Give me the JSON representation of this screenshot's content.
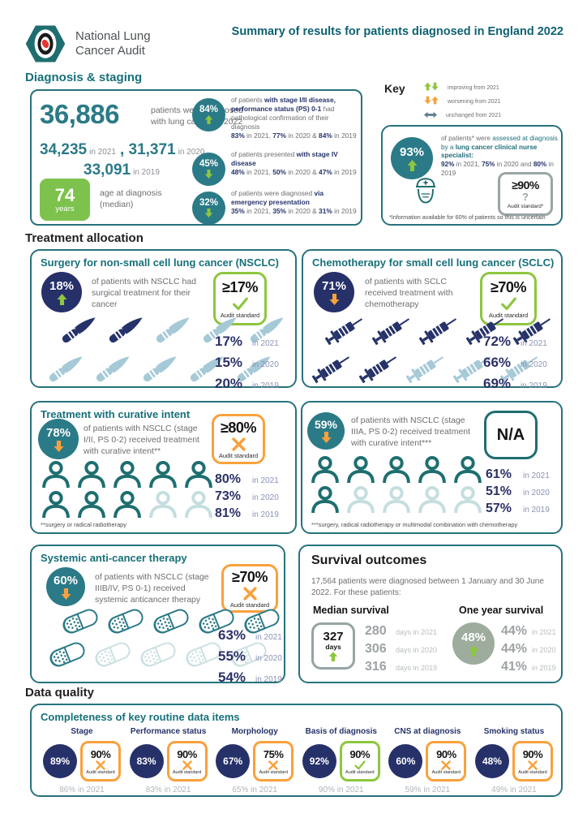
{
  "colors": {
    "teal": "#1F6F7B",
    "teal_circle": "#2B7A87",
    "navy": "#263069",
    "lime_improving": "#8DC63F",
    "orange_worsening": "#F9A13C",
    "slate_unchanged": "#5E7D8C",
    "sage": "#9DAC9D",
    "age_green": "#7CC24D"
  },
  "header": {
    "logo_line1": "National Lung",
    "logo_line2": "Cancer Audit",
    "title": "Summary of results for patients diagnosed in England 2022"
  },
  "diagnosis": {
    "heading": "Diagnosis & staging",
    "total": {
      "value": "36,886",
      "caption": "patients were diagnosed with lung cancer in 2022"
    },
    "prior_years": [
      {
        "value": "34,235",
        "label": "in 2021"
      },
      {
        "value": "31,371",
        "label": "in 2020"
      },
      {
        "value": "33,091",
        "label": "in 2019"
      }
    ],
    "age": {
      "value": "74",
      "unit": "years",
      "caption": "age at diagnosis (median)"
    },
    "bullets": [
      {
        "pct": "84%",
        "trend": "up-good",
        "desc": [
          {
            "t": "of patients "
          },
          {
            "t": "with stage I/II disease, performance status (PS) 0-1",
            "b": true
          },
          {
            "t": " had pathological confirmation of their diagnosis",
            "x": false
          }
        ],
        "history": [
          {
            "t": "83%",
            "b": true
          },
          {
            "t": " in 2021, "
          },
          {
            "t": "77%",
            "b": true
          },
          {
            "t": " in 2020 & "
          },
          {
            "t": "84%",
            "b": true
          },
          {
            "t": " in 2019"
          }
        ]
      },
      {
        "pct": "45%",
        "trend": "down-good",
        "desc": [
          {
            "t": "of patients presented "
          },
          {
            "t": "with stage IV disease",
            "b": true
          }
        ],
        "history": [
          {
            "t": "48%",
            "b": true
          },
          {
            "t": " in 2021, "
          },
          {
            "t": "50%",
            "b": true
          },
          {
            "t": " in 2020 & "
          },
          {
            "t": "47%",
            "b": true
          },
          {
            "t": " in 2019"
          }
        ]
      },
      {
        "pct": "32%",
        "trend": "down-good",
        "desc": [
          {
            "t": "of patients were diagnosed "
          },
          {
            "t": "via emergency presentation",
            "b": true
          }
        ],
        "history": [
          {
            "t": "35%",
            "b": true
          },
          {
            "t": " in 2021, "
          },
          {
            "t": "35%",
            "b": true
          },
          {
            "t": " in 2020 & "
          },
          {
            "t": "31%",
            "b": true
          },
          {
            "t": " in 2019"
          }
        ]
      }
    ]
  },
  "key": {
    "heading": "Key",
    "legend": [
      {
        "icon": "green-up-down-arrows",
        "label": "improving from 2021"
      },
      {
        "icon": "orange-down-up-arrows",
        "label": "worsening from 2021"
      },
      {
        "icon": "grey-left-right-arrow",
        "label": "unchanged from 2021"
      }
    ],
    "cns": {
      "pct": "93%",
      "trend": "up-good",
      "desc": [
        {
          "t": "of patients* were "
        },
        {
          "t": "assessed at diagnosis by a ",
          "teal": true
        },
        {
          "t": "lung cancer clinical nurse specialist:",
          "teal": true,
          "b": true
        }
      ],
      "history": [
        {
          "t": "92%",
          "b": true
        },
        {
          "t": " in 2021, "
        },
        {
          "t": "75%",
          "b": true
        },
        {
          "t": " in 2020 and "
        },
        {
          "t": "80%",
          "b": true
        },
        {
          "t": " in 2019"
        }
      ],
      "standard": {
        "value": "≥90%",
        "mark": "?",
        "label": "Audit standard*"
      },
      "footnote": "*Information available for 60% of patients so this is uncertain"
    }
  },
  "treatment": {
    "heading": "Treatment allocation",
    "panels": [
      {
        "title": "Surgery for non-small cell lung cancer (NSCLC)",
        "pct": "18%",
        "trend": "up-good",
        "desc": "of patients with NSCLC had surgical treatment for their cancer",
        "standard": {
          "value": "≥17%",
          "result": "pass",
          "label": "Audit standard"
        },
        "icons": {
          "type": "scalpel",
          "total": 10,
          "dark": 2,
          "per_row": 5
        },
        "history": [
          {
            "value": "17%",
            "label": "in 2021"
          },
          {
            "value": "15%",
            "label": "in 2020"
          },
          {
            "value": "20%",
            "label": "in 2019"
          }
        ]
      },
      {
        "title": "Chemotherapy for small cell lung cancer (SCLC)",
        "pct": "71%",
        "trend": "down-bad",
        "desc": "of patients with SCLC received treatment with chemotherapy",
        "standard": {
          "value": "≥70%",
          "result": "pass",
          "label": "Audit standard"
        },
        "icons": {
          "type": "syringe",
          "total": 10,
          "dark": 7,
          "per_row": 5
        },
        "history": [
          {
            "value": "72%",
            "label": "in 2021"
          },
          {
            "value": "66%",
            "label": "in 2020"
          },
          {
            "value": "69%",
            "label": "in 2019"
          }
        ]
      },
      {
        "title": "Treatment with curative intent",
        "pct": "78%",
        "trend": "down-bad",
        "desc": "of patients with NSCLC (stage I/II, PS 0-2) received treatment with curative intent**",
        "standard": {
          "value": "≥80%",
          "result": "fail",
          "label": "Audit standard"
        },
        "icons": {
          "type": "person",
          "total": 10,
          "dark": 8,
          "per_row": 5
        },
        "history": [
          {
            "value": "80%",
            "label": "in 2021"
          },
          {
            "value": "73%",
            "label": "in 2020"
          },
          {
            "value": "81%",
            "label": "in 2019"
          }
        ],
        "footnote": "**surgery or radical radiotherapy"
      },
      {
        "pct": "59%",
        "trend": "down-bad",
        "desc": "of patients with NSCLC (stage IIIA, PS 0-2) received treatment with curative intent***",
        "standard": {
          "value": "N/A",
          "result": "na"
        },
        "icons": {
          "type": "person",
          "total": 10,
          "dark": 6,
          "per_row": 5
        },
        "history": [
          {
            "value": "61%",
            "label": "in 2021"
          },
          {
            "value": "51%",
            "label": "in 2020"
          },
          {
            "value": "57%",
            "label": "in 2019"
          }
        ],
        "footnote": "***surgery, radical radiotherapy or multimodal combination with chemotherapy"
      },
      {
        "title": "Systemic anti-cancer therapy",
        "pct": "60%",
        "trend": "down-bad",
        "desc": "of patients with NSCLC (stage IIIB/IV, PS 0-1) received systemic anticancer therapy",
        "standard": {
          "value": "≥70%",
          "result": "fail",
          "label": "Audit standard"
        },
        "icons": {
          "type": "pill",
          "total": 10,
          "dark": 6,
          "per_row": 5
        },
        "history": [
          {
            "value": "63%",
            "label": "in 2021"
          },
          {
            "value": "55%",
            "label": "in 2020"
          },
          {
            "value": "54%",
            "label": "in 2019"
          }
        ]
      }
    ]
  },
  "survival": {
    "title": "Survival outcomes",
    "intro": "17,564 patients were diagnosed between 1 January and 30 June 2022. For these patients:",
    "median": {
      "label": "Median survival",
      "value": "327",
      "unit": "days",
      "trend": "up-good",
      "history": [
        {
          "value": "280",
          "label": "days in 2021"
        },
        {
          "value": "306",
          "label": "days in 2020"
        },
        {
          "value": "316",
          "label": "days in 2019"
        }
      ]
    },
    "one_year": {
      "label": "One year survival",
      "pct": "48%",
      "trend": "up-good",
      "history": [
        {
          "value": "44%",
          "label": "in 2021"
        },
        {
          "value": "44%",
          "label": "in 2020"
        },
        {
          "value": "41%",
          "label": "in 2019"
        }
      ]
    }
  },
  "data_quality": {
    "heading": "Data quality",
    "panel_title": "Completeness of key routine data items",
    "standard_label": "Audit standard",
    "items": [
      {
        "label": "Stage",
        "pct": "89%",
        "standard": "90%",
        "result": "fail",
        "prior": "86% in 2021"
      },
      {
        "label": "Performance status",
        "pct": "83%",
        "standard": "90%",
        "result": "fail",
        "prior": "83% in 2021"
      },
      {
        "label": "Morphology",
        "pct": "67%",
        "standard": "75%",
        "result": "fail",
        "prior": "65% in 2021"
      },
      {
        "label": "Basis of diagnosis",
        "pct": "92%",
        "standard": "90%",
        "result": "pass",
        "prior": "90% in 2021"
      },
      {
        "label": "CNS at diagnosis",
        "pct": "60%",
        "standard": "90%",
        "result": "fail",
        "prior": "59% in 2021"
      },
      {
        "label": "Smoking status",
        "pct": "48%",
        "standard": "90%",
        "result": "fail",
        "prior": "49% in 2021"
      }
    ]
  }
}
